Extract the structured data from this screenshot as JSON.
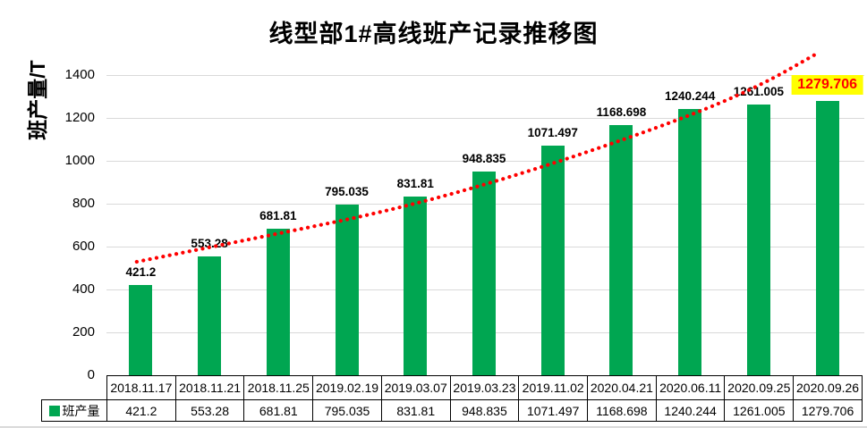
{
  "chart_data": {
    "type": "bar",
    "title": "线型部1#高线班产记录推移图",
    "ylabel": "班产量/T",
    "xlabel": "",
    "categories": [
      "2018.11.17",
      "2018.11.21",
      "2018.11.25",
      "2019.02.19",
      "2019.03.07",
      "2019.03.23",
      "2019.11.02",
      "2020.04.21",
      "2020.06.11",
      "2020.09.25",
      "2020.09.26"
    ],
    "series": [
      {
        "name": "班产量",
        "color": "#00A651",
        "values": [
          421.2,
          553.28,
          681.81,
          795.035,
          831.81,
          948.835,
          1071.497,
          1168.698,
          1240.244,
          1261.005,
          1279.706
        ]
      }
    ],
    "ylim": [
      0,
      1400
    ],
    "yticks": [
      0,
      200,
      400,
      600,
      800,
      1000,
      1200,
      1400
    ],
    "grid": true,
    "gridline_color": "#d9d9d9",
    "data_labels": true,
    "data_label_color": "#000000",
    "highlight_last_label": {
      "background": "#FFFF00",
      "text_color": "#FF0000"
    },
    "trendline": {
      "color": "#FF0000",
      "style": "round-dot",
      "points": [
        {
          "i": -0.06,
          "v": 529
        },
        {
          "i": 1.85,
          "v": 650
        },
        {
          "i": 3.8,
          "v": 779
        },
        {
          "i": 5.75,
          "v": 958
        },
        {
          "i": 7.83,
          "v": 1188
        },
        {
          "i": 9.0,
          "v": 1346
        },
        {
          "i": 9.89,
          "v": 1508
        }
      ]
    },
    "legend": {
      "label": "班产量",
      "swatch_color": "#00A651",
      "position": "table-left"
    }
  }
}
